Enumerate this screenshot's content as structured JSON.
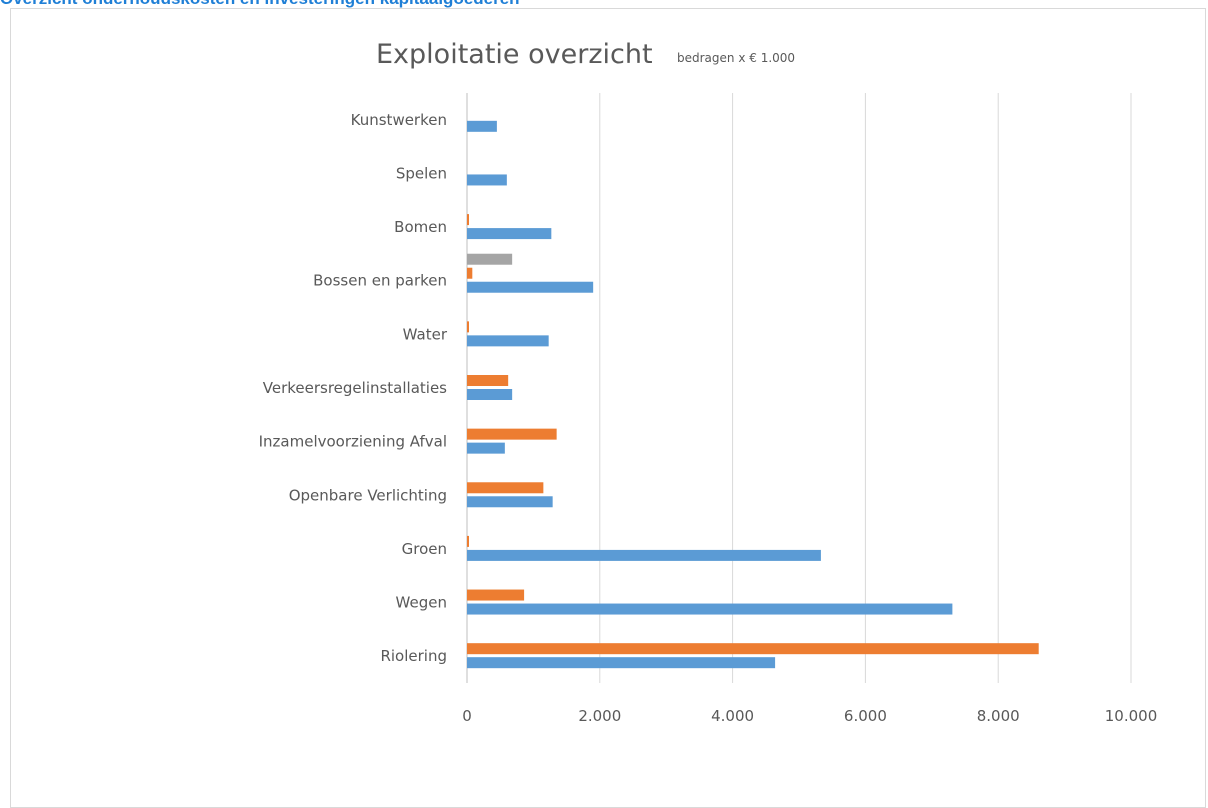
{
  "page": {
    "heading": "Overzicht onderhoudskosten en investeringen kapitaalgoederen",
    "heading_color": "#1f7fd6"
  },
  "chart_data": {
    "type": "bar",
    "orientation": "horizontal",
    "title": "Exploitatie  overzicht",
    "subtitle": "bedragen x € 1.000",
    "xlabel": "",
    "ylabel": "",
    "xlim": [
      0,
      10000
    ],
    "xticks": [
      0,
      2000,
      4000,
      6000,
      8000,
      10000
    ],
    "xtick_labels": [
      "0",
      "2.000",
      "4.000",
      "6.000",
      "8.000",
      "10.000"
    ],
    "grid": true,
    "legend": "none",
    "categories": [
      "Kunstwerken",
      "Spelen",
      "Bomen",
      "Bossen en parken",
      "Water",
      "Verkeersregelinstallaties",
      "Inzamelvoorziening Afval",
      "Openbare Verlichting",
      "Groen",
      "Wegen",
      "Riolering"
    ],
    "series": [
      {
        "color": "#5b9bd5",
        "values": [
          450,
          600,
          1270,
          1900,
          1230,
          680,
          570,
          1290,
          5330,
          7310,
          4640
        ]
      },
      {
        "color": "#ed7d31",
        "values": [
          0,
          0,
          25,
          80,
          20,
          620,
          1350,
          1150,
          20,
          860,
          8610
        ]
      },
      {
        "color": "#a5a5a5",
        "values": [
          0,
          0,
          0,
          680,
          0,
          0,
          0,
          0,
          0,
          0,
          0
        ]
      }
    ]
  }
}
